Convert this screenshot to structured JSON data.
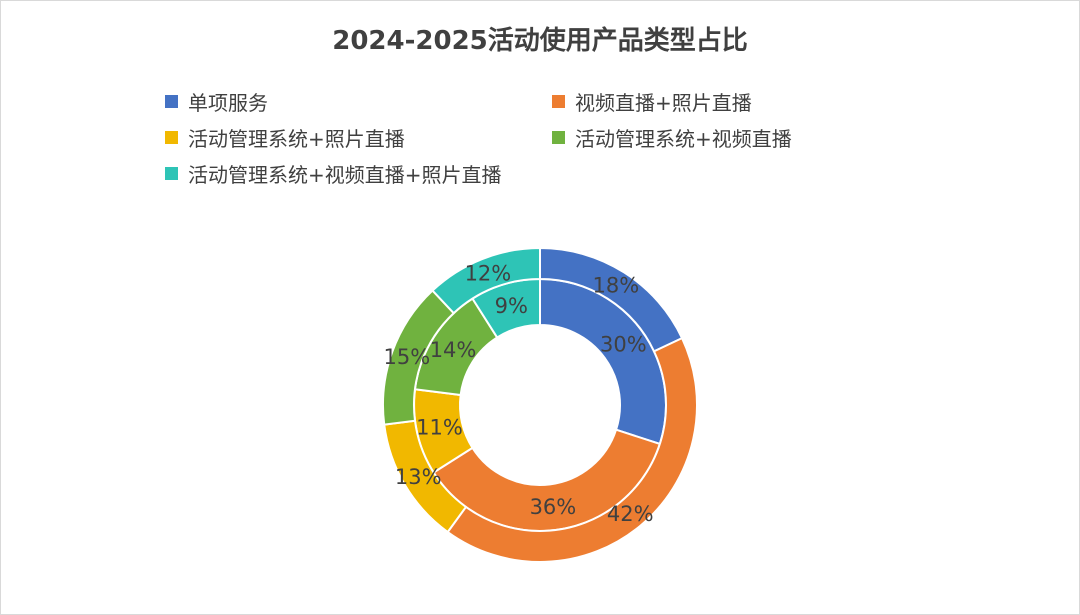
{
  "chart_data": {
    "type": "pie",
    "title": "2024-2025活动使用产品类型占比",
    "legend_position": "top",
    "categories": [
      "单项服务",
      "视频直播+照片直播",
      "活动管理系统+照片直播",
      "活动管理系统+视频直播",
      "活动管理系统+视频直播+照片直播"
    ],
    "colors": [
      "#4472C4",
      "#ED7D31",
      "#F1B800",
      "#70B23F",
      "#2EC4B6"
    ],
    "series": [
      {
        "values": [
          30,
          36,
          11,
          14,
          9
        ],
        "labels": [
          "30%",
          "36%",
          "11%",
          "14%",
          "9%"
        ]
      },
      {
        "values": [
          18,
          42,
          13,
          15,
          12
        ],
        "labels": [
          "18%",
          "42%",
          "13%",
          "15%",
          "12%"
        ]
      }
    ]
  }
}
